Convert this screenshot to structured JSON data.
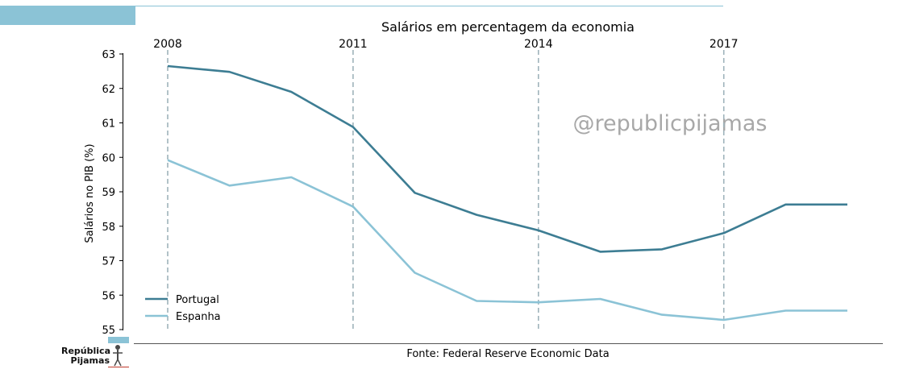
{
  "chart_data": {
    "type": "line",
    "title": "Salários em percentagem da economia",
    "ylabel": "Salários no PIB (%)",
    "xlabel": "",
    "x": [
      2008,
      2009,
      2010,
      2011,
      2012,
      2013,
      2014,
      2015,
      2016,
      2017,
      2018,
      2019
    ],
    "x_ticks": [
      "2008",
      "2011",
      "2014",
      "2017"
    ],
    "x_tick_values": [
      2008,
      2011,
      2014,
      2017
    ],
    "ylim": [
      55,
      63
    ],
    "y_ticks": [
      55,
      56,
      57,
      58,
      59,
      60,
      61,
      62,
      63
    ],
    "series": [
      {
        "name": "Portugal",
        "color": "#3d7d93",
        "values": [
          62.65,
          62.48,
          61.9,
          60.88,
          58.97,
          58.33,
          57.88,
          57.26,
          57.33,
          57.8,
          58.63,
          58.63
        ]
      },
      {
        "name": "Espanha",
        "color": "#8bc3d6",
        "values": [
          59.92,
          59.18,
          59.42,
          58.57,
          56.65,
          55.83,
          55.79,
          55.89,
          55.43,
          55.28,
          55.55,
          55.55
        ]
      }
    ],
    "legend_position": "bottom-left",
    "vlines_at": [
      2008,
      2011,
      2014,
      2017
    ],
    "watermark": "@republicpijamas",
    "source": "Fonte: Federal Reserve Economic Data"
  },
  "brand": {
    "line1": "República",
    "line2": "Pijamas",
    "accent": "#8bc3d6"
  }
}
